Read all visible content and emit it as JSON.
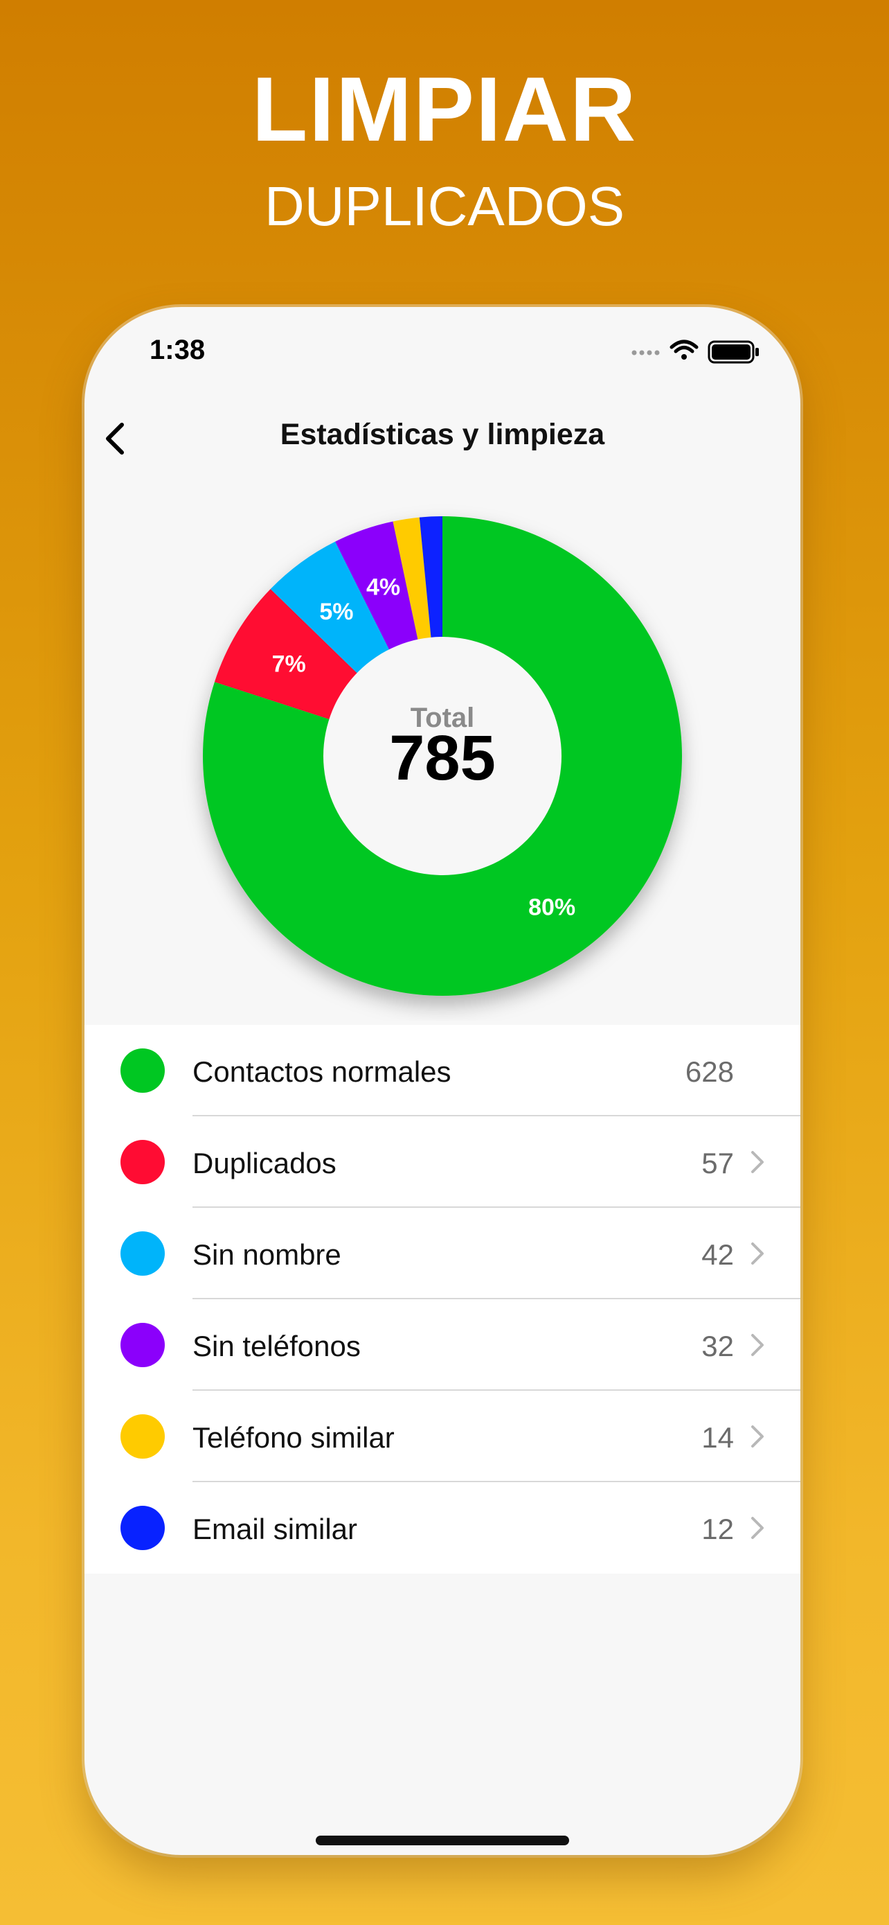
{
  "promo": {
    "title": "LIMPIAR",
    "subtitle": "DUPLICADOS"
  },
  "status_bar": {
    "time": "1:38",
    "icons": [
      "cellular-dots-icon",
      "wifi-icon",
      "battery-icon"
    ]
  },
  "nav": {
    "back_icon": "chevron-left-icon",
    "title": "Estadísticas y limpieza"
  },
  "chart_data": {
    "type": "pie",
    "center_label": "Total",
    "center_value": "785",
    "total": 785,
    "slices": [
      {
        "name": "Contactos normales",
        "value": 628,
        "label": "80%",
        "color": "#00C722"
      },
      {
        "name": "Duplicados",
        "value": 57,
        "label": "7%",
        "color": "#FF0C33"
      },
      {
        "name": "Sin nombre",
        "value": 42,
        "label": "5%",
        "color": "#00B4FA"
      },
      {
        "name": "Sin teléfonos",
        "value": 32,
        "label": "4%",
        "color": "#8B00FB"
      },
      {
        "name": "Teléfono similar",
        "value": 14,
        "label": "",
        "color": "#FFCB00"
      },
      {
        "name": "Email similar",
        "value": 12,
        "label": "",
        "color": "#0822FF"
      }
    ]
  },
  "list": {
    "items": [
      {
        "label": "Contactos normales",
        "count": "628",
        "color": "#00C722",
        "has_chevron": false
      },
      {
        "label": "Duplicados",
        "count": "57",
        "color": "#FF0C33",
        "has_chevron": true
      },
      {
        "label": "Sin nombre",
        "count": "42",
        "color": "#00B4FA",
        "has_chevron": true
      },
      {
        "label": "Sin teléfonos",
        "count": "32",
        "color": "#8B00FB",
        "has_chevron": true
      },
      {
        "label": "Teléfono similar",
        "count": "14",
        "color": "#FFCB00",
        "has_chevron": true
      },
      {
        "label": "Email similar",
        "count": "12",
        "color": "#0822FF",
        "has_chevron": true
      }
    ]
  }
}
